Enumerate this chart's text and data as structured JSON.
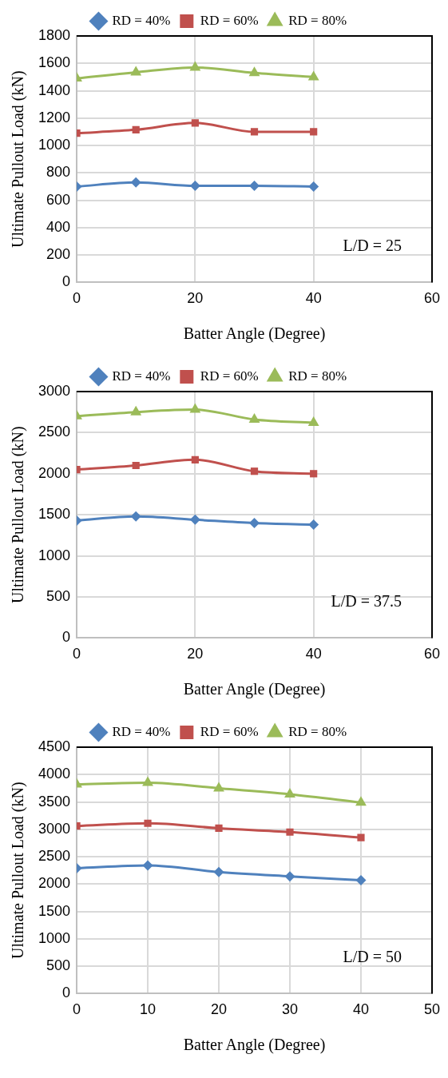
{
  "chart_data": [
    {
      "type": "line",
      "xlabel": "Batter Angle (Degree)",
      "ylabel": "Ultimate Pullout Load (kN)",
      "x": [
        0,
        10,
        20,
        30,
        40
      ],
      "xlim": [
        0,
        60
      ],
      "xticks": [
        0,
        20,
        40,
        60
      ],
      "ylim": [
        0,
        1800
      ],
      "yticks": [
        0,
        200,
        400,
        600,
        800,
        1000,
        1200,
        1400,
        1600,
        1800
      ],
      "grid": true,
      "legend": "top",
      "annotations": [
        "L/D = 25"
      ],
      "series": [
        {
          "name": "RD = 40%",
          "color": "#4f81bd",
          "marker": "diamond",
          "values": [
            700,
            730,
            705,
            705,
            700
          ]
        },
        {
          "name": "RD = 60%",
          "color": "#c0504d",
          "marker": "square",
          "values": [
            1090,
            1115,
            1165,
            1100,
            1100
          ]
        },
        {
          "name": "RD = 80%",
          "color": "#9bbb59",
          "marker": "triangle",
          "values": [
            1490,
            1535,
            1570,
            1530,
            1500
          ]
        }
      ]
    },
    {
      "type": "line",
      "xlabel": "Batter Angle (Degree)",
      "ylabel": "Ultimate Pullout Load (kN)",
      "x": [
        0,
        10,
        20,
        30,
        40
      ],
      "xlim": [
        0,
        60
      ],
      "xticks": [
        0,
        20,
        40,
        60
      ],
      "ylim": [
        0,
        3000
      ],
      "yticks": [
        0,
        500,
        1000,
        1500,
        2000,
        2500,
        3000
      ],
      "grid": true,
      "legend": "top",
      "annotations": [
        "L/D = 37.5"
      ],
      "series": [
        {
          "name": "RD = 40%",
          "color": "#4f81bd",
          "marker": "diamond",
          "values": [
            1430,
            1480,
            1440,
            1400,
            1380
          ]
        },
        {
          "name": "RD = 60%",
          "color": "#c0504d",
          "marker": "square",
          "values": [
            2050,
            2100,
            2170,
            2030,
            2000
          ]
        },
        {
          "name": "RD = 80%",
          "color": "#9bbb59",
          "marker": "triangle",
          "values": [
            2700,
            2750,
            2780,
            2660,
            2620
          ]
        }
      ]
    },
    {
      "type": "line",
      "xlabel": "Batter Angle (Degree)",
      "ylabel": "Ultimate Pullout Load (kN)",
      "x": [
        0,
        10,
        20,
        30,
        40
      ],
      "xlim": [
        0,
        50
      ],
      "xticks": [
        0,
        10,
        20,
        30,
        40,
        50
      ],
      "ylim": [
        0,
        4500
      ],
      "yticks": [
        0,
        500,
        1000,
        1500,
        2000,
        2500,
        3000,
        3500,
        4000,
        4500
      ],
      "grid": true,
      "legend": "top",
      "annotations": [
        "L/D = 50"
      ],
      "series": [
        {
          "name": "RD = 40%",
          "color": "#4f81bd",
          "marker": "diamond",
          "values": [
            2290,
            2340,
            2220,
            2140,
            2070
          ]
        },
        {
          "name": "RD = 60%",
          "color": "#c0504d",
          "marker": "square",
          "values": [
            3060,
            3110,
            3020,
            2950,
            2850
          ]
        },
        {
          "name": "RD = 80%",
          "color": "#9bbb59",
          "marker": "triangle",
          "values": [
            3820,
            3850,
            3750,
            3640,
            3490
          ]
        }
      ]
    }
  ]
}
